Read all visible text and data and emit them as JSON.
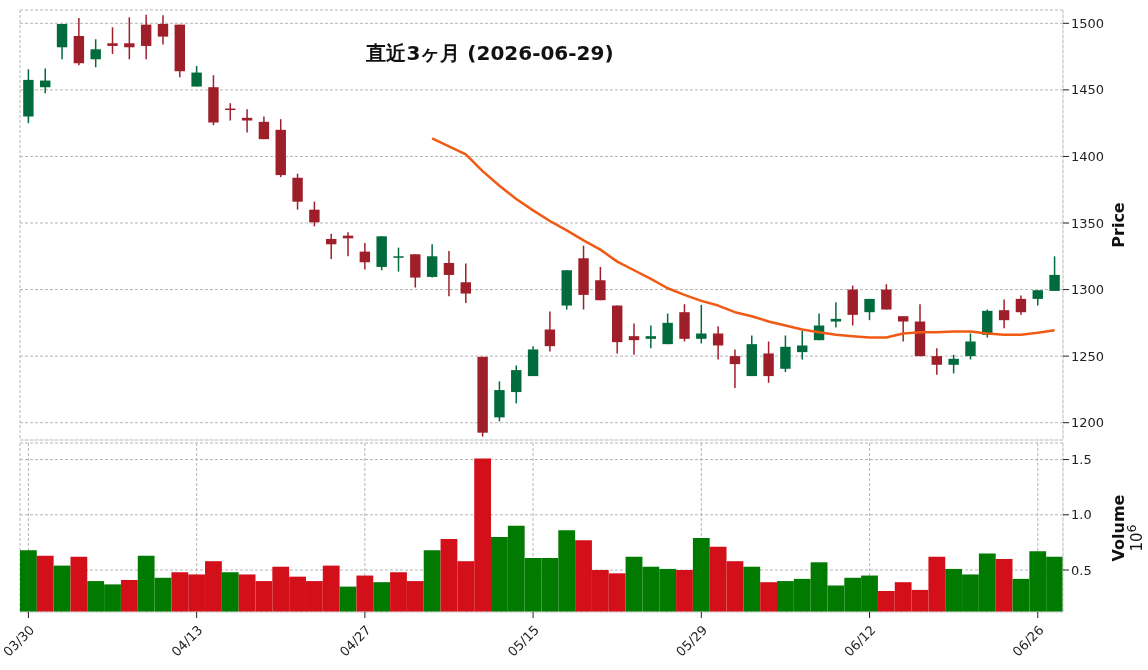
{
  "chart_data": [
    {
      "type": "candlestick",
      "title": "直近3ヶ月 (2026-06-29)",
      "ylabel": "Price",
      "categories": [
        null,
        null,
        null,
        null,
        null,
        null,
        null,
        null,
        null,
        null,
        null,
        null,
        null,
        null,
        null,
        null,
        null,
        null,
        null,
        null,
        null,
        null,
        null,
        null,
        null,
        null,
        null,
        null,
        null,
        null,
        null,
        null,
        null,
        null,
        null,
        null,
        null,
        null,
        null,
        null,
        null,
        null,
        null,
        null,
        null,
        null,
        null,
        null,
        null,
        null,
        null,
        null,
        null,
        null,
        null,
        null,
        null,
        null,
        null,
        null,
        null,
        null
      ],
      "ohlc": [
        [
          1430,
          1465.5,
          1425,
          1457.5
        ],
        [
          1452,
          1466,
          1447.5,
          1457
        ],
        [
          1482,
          1499.5,
          1473,
          1499.5
        ],
        [
          1490.5,
          1504,
          1468.5,
          1470
        ],
        [
          1473,
          1488,
          1467,
          1480.5
        ],
        [
          1485,
          1497,
          1477,
          1483
        ],
        [
          1485,
          1504.5,
          1473,
          1482
        ],
        [
          1499,
          1506.5,
          1473,
          1483
        ],
        [
          1499.5,
          1506,
          1484,
          1490
        ],
        [
          1499,
          1499,
          1459.5,
          1464
        ],
        [
          1452.5,
          1468,
          1452.5,
          1463
        ],
        [
          1452,
          1461,
          1423.5,
          1425.5
        ],
        [
          1436,
          1440,
          1427,
          1435
        ],
        [
          1429,
          1435.5,
          1418,
          1427
        ],
        [
          1426,
          1430,
          1413,
          1413
        ],
        [
          1420,
          1428,
          1384.5,
          1386
        ],
        [
          1384,
          1387,
          1360,
          1366
        ],
        [
          1360,
          1366,
          1347.5,
          1350.5
        ],
        [
          1338,
          1342,
          1323,
          1334
        ],
        [
          1340.5,
          1343,
          1325,
          1338.5
        ],
        [
          1328.5,
          1335,
          1315,
          1320.5
        ],
        [
          1317,
          1340,
          1314.5,
          1340
        ],
        [
          1324.5,
          1331.5,
          1313.5,
          1325
        ],
        [
          1326.5,
          1326.5,
          1301.5,
          1309
        ],
        [
          1309.5,
          1334,
          1309,
          1325
        ],
        [
          1320,
          1329,
          1295,
          1311
        ],
        [
          1305.5,
          1319.5,
          1290,
          1297
        ],
        [
          1249.5,
          1249.5,
          1189.5,
          1192.5
        ],
        [
          1204,
          1231,
          1201,
          1224.5
        ],
        [
          1223,
          1243,
          1214.5,
          1239.5
        ],
        [
          1235,
          1257.5,
          1235,
          1255
        ],
        [
          1270,
          1283.5,
          1253.5,
          1257.5
        ],
        [
          1288,
          1314.5,
          1285,
          1314.5
        ],
        [
          1323.5,
          1333,
          1285,
          1296
        ],
        [
          1307,
          1317,
          1292,
          1292
        ],
        [
          1288,
          1288,
          1252,
          1260.5
        ],
        [
          1265,
          1274.5,
          1251,
          1262
        ],
        [
          1263,
          1273,
          1256,
          1265
        ],
        [
          1259,
          1282,
          1259,
          1275
        ],
        [
          1283,
          1289,
          1261,
          1263
        ],
        [
          1263,
          1288.5,
          1259.5,
          1267
        ],
        [
          1267,
          1272.5,
          1247.5,
          1258
        ],
        [
          1250,
          1255,
          1226,
          1244
        ],
        [
          1235,
          1265.5,
          1235,
          1259
        ],
        [
          1252,
          1261,
          1230,
          1235
        ],
        [
          1240.5,
          1265.5,
          1238,
          1257
        ],
        [
          1253,
          1269,
          1247.5,
          1258
        ],
        [
          1262,
          1282,
          1262,
          1273
        ],
        [
          1276,
          1290.5,
          1271.5,
          1278
        ],
        [
          1300,
          1303,
          1273,
          1281
        ],
        [
          1283,
          1293,
          1277,
          1293
        ],
        [
          1300,
          1304,
          1285,
          1285
        ],
        [
          1280,
          1280,
          1261,
          1276
        ],
        [
          1276,
          1289,
          1250,
          1250
        ],
        [
          1250,
          1256,
          1236,
          1243.5
        ],
        [
          1243.5,
          1251,
          1237,
          1248
        ],
        [
          1250,
          1267,
          1247.5,
          1261
        ],
        [
          1266,
          1285,
          1264,
          1284
        ],
        [
          1284.5,
          1292.5,
          1271,
          1277
        ],
        [
          1293,
          1295.5,
          1281,
          1283
        ],
        [
          1293,
          1299.5,
          1288,
          1299.5
        ],
        [
          1299,
          1325,
          1299,
          1311
        ]
      ],
      "colors": [
        "#006b3c",
        "#006b3c",
        "#006b3c",
        "#9e1f2a",
        "#006b3c",
        "#9e1f2a",
        "#9e1f2a",
        "#9e1f2a",
        "#9e1f2a",
        "#9e1f2a",
        "#006b3c",
        "#9e1f2a",
        "#9e1f2a",
        "#9e1f2a",
        "#9e1f2a",
        "#9e1f2a",
        "#9e1f2a",
        "#9e1f2a",
        "#9e1f2a",
        "#9e1f2a",
        "#9e1f2a",
        "#006b3c",
        "#006b3c",
        "#9e1f2a",
        "#006b3c",
        "#9e1f2a",
        "#9e1f2a",
        "#9e1f2a",
        "#006b3c",
        "#006b3c",
        "#006b3c",
        "#9e1f2a",
        "#006b3c",
        "#9e1f2a",
        "#9e1f2a",
        "#9e1f2a",
        "#9e1f2a",
        "#006b3c",
        "#006b3c",
        "#9e1f2a",
        "#006b3c",
        "#9e1f2a",
        "#9e1f2a",
        "#006b3c",
        "#9e1f2a",
        "#006b3c",
        "#006b3c",
        "#006b3c",
        "#006b3c",
        "#9e1f2a",
        "#006b3c",
        "#9e1f2a",
        "#9e1f2a",
        "#9e1f2a",
        "#9e1f2a",
        "#006b3c",
        "#006b3c",
        "#006b3c",
        "#9e1f2a",
        "#9e1f2a",
        "#006b3c",
        "#006b3c"
      ],
      "series": [
        {
          "type": "line",
          "color": "#f05a14",
          "values": [
            null,
            null,
            null,
            null,
            null,
            null,
            null,
            null,
            null,
            null,
            null,
            null,
            null,
            null,
            null,
            null,
            null,
            null,
            null,
            null,
            null,
            null,
            null,
            null,
            1413.5,
            1407.5,
            1401.5,
            1389,
            1378,
            1368,
            1359.5,
            1351.5,
            1344.5,
            1337,
            1330,
            1321,
            1314.5,
            1308,
            1301,
            1296,
            1291.5,
            1288,
            1283,
            1280,
            1276,
            1273,
            1270,
            1268,
            1266,
            1265,
            1264,
            1264,
            1267,
            1268,
            1268,
            1268.5,
            1268.5,
            1267,
            1266,
            1266,
            1267.5,
            1269.5
          ]
        }
      ],
      "ylim": [
        1187,
        1510
      ],
      "yticks": [
        1200,
        1250,
        1300,
        1350,
        1400,
        1450,
        1500
      ],
      "grid": true,
      "tick_labels": "y"
    },
    {
      "type": "bar",
      "ylabel": "Volume",
      "annotations": [
        "10$^{6}$"
      ],
      "categories": [
        "03/30",
        null,
        null,
        null,
        null,
        null,
        null,
        null,
        null,
        null,
        "04/13",
        null,
        null,
        null,
        null,
        null,
        null,
        null,
        null,
        null,
        "04/27",
        null,
        null,
        null,
        null,
        null,
        null,
        null,
        null,
        null,
        "05/15",
        null,
        null,
        null,
        null,
        null,
        null,
        null,
        null,
        null,
        "05/29",
        null,
        null,
        null,
        null,
        null,
        null,
        null,
        null,
        null,
        "06/12",
        null,
        null,
        null,
        null,
        null,
        null,
        null,
        null,
        null,
        "06/26",
        null
      ],
      "values": [
        0.68,
        0.63,
        0.54,
        0.62,
        0.4,
        0.37,
        0.41,
        0.63,
        0.43,
        0.48,
        0.46,
        0.58,
        0.48,
        0.46,
        0.4,
        0.53,
        0.44,
        0.4,
        0.54,
        0.35,
        0.45,
        0.39,
        0.48,
        0.4,
        0.68,
        0.78,
        0.58,
        1.51,
        0.8,
        0.9,
        0.61,
        0.61,
        0.86,
        0.77,
        0.5,
        0.47,
        0.62,
        0.53,
        0.51,
        0.5,
        0.79,
        0.71,
        0.58,
        0.53,
        0.39,
        0.4,
        0.42,
        0.57,
        0.36,
        0.43,
        0.45,
        0.31,
        0.39,
        0.32,
        0.62,
        0.51,
        0.46,
        0.65,
        0.6,
        0.42,
        0.67,
        0.62
      ],
      "colors": [
        "#007a00",
        "#d3101a",
        "#007a00",
        "#d3101a",
        "#007a00",
        "#007a00",
        "#d3101a",
        "#007a00",
        "#007a00",
        "#d3101a",
        "#d3101a",
        "#d3101a",
        "#007a00",
        "#d3101a",
        "#d3101a",
        "#d3101a",
        "#d3101a",
        "#d3101a",
        "#d3101a",
        "#007a00",
        "#d3101a",
        "#007a00",
        "#d3101a",
        "#d3101a",
        "#007a00",
        "#d3101a",
        "#d3101a",
        "#d3101a",
        "#007a00",
        "#007a00",
        "#007a00",
        "#007a00",
        "#007a00",
        "#d3101a",
        "#d3101a",
        "#d3101a",
        "#007a00",
        "#007a00",
        "#007a00",
        "#d3101a",
        "#007a00",
        "#d3101a",
        "#d3101a",
        "#007a00",
        "#d3101a",
        "#007a00",
        "#007a00",
        "#007a00",
        "#007a00",
        "#007a00",
        "#007a00",
        "#d3101a",
        "#d3101a",
        "#d3101a",
        "#d3101a",
        "#007a00",
        "#007a00",
        "#007a00",
        "#d3101a",
        "#007a00",
        "#007a00",
        "#007a00"
      ],
      "ylim": [
        0.12,
        1.65
      ],
      "yticks": [
        0.5,
        {
          "value": 1,
          "label": "1.0"
        },
        1.5
      ],
      "grid": true
    }
  ]
}
